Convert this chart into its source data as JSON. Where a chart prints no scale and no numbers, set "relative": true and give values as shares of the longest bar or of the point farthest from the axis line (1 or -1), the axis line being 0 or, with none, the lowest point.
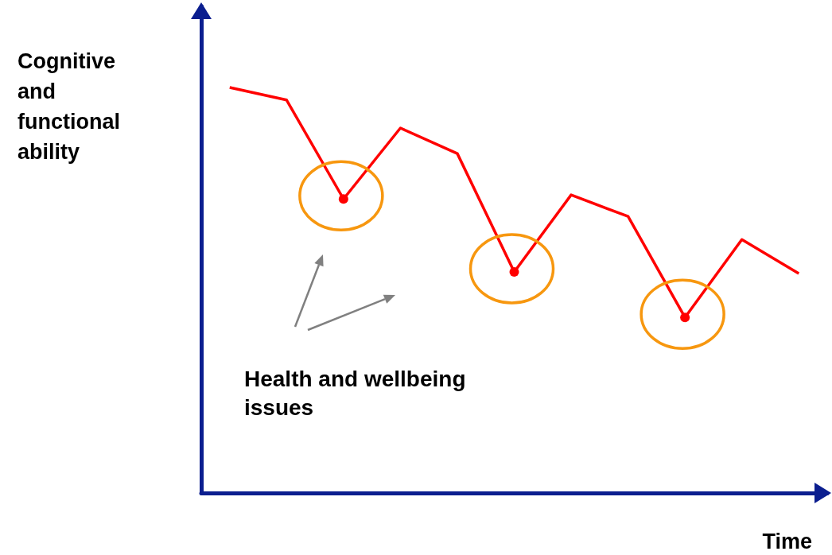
{
  "chart_data": {
    "type": "line",
    "relative": true,
    "xlabel": "Time",
    "ylabel": "Cognitive and functional ability",
    "annotations": [
      "Health and wellbeing issues"
    ],
    "marker": "none",
    "line_style": "solid",
    "categories": [
      null,
      null,
      null,
      null,
      null,
      null,
      null,
      null,
      null,
      null,
      null
    ],
    "series": [
      {
        "color": "#ff0000",
        "values": [
          1.0,
          0.969,
          0.725,
          0.9,
          0.837,
          0.545,
          0.735,
          0.682,
          0.433,
          0.625,
          0.541
        ]
      }
    ]
  }
}
